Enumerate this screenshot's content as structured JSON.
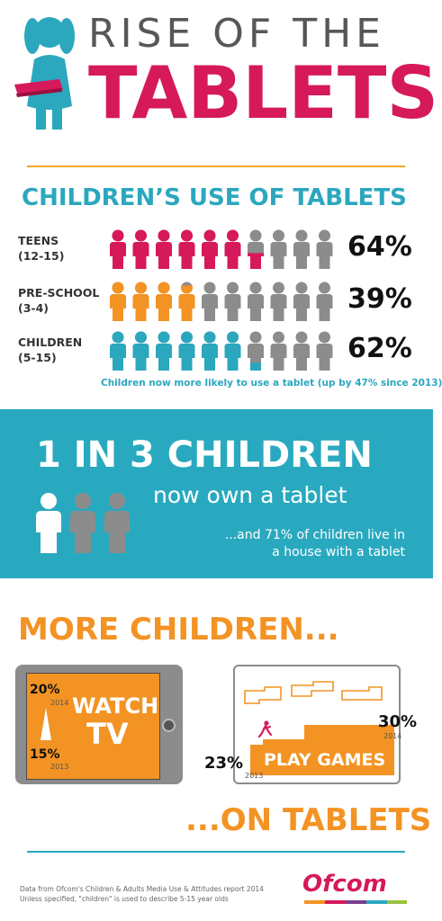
{
  "header": {
    "title_top": "RISE OF THE",
    "title_main": "TABLETS"
  },
  "usage": {
    "heading": "CHILDREN’S USE OF TABLETS",
    "rows": [
      {
        "label_line1": "TEENS",
        "label_line2": "(12-15)",
        "percent_text": "64%",
        "fill": 0.64,
        "color": "#d6195b"
      },
      {
        "label_line1": "PRE-SCHOOL",
        "label_line2": "(3-4)",
        "percent_text": "39%",
        "fill": 0.39,
        "color": "#f39324"
      },
      {
        "label_line1": "CHILDREN",
        "label_line2": "(5-15)",
        "percent_text": "62%",
        "fill": 0.62,
        "color": "#2ba7be"
      }
    ],
    "note": "Children now more likely to use a tablet (up by 47% since 2013)"
  },
  "ownership": {
    "headline": "1 IN 3 CHILDREN",
    "subline": "now own a tablet",
    "extra_line1": "...and 71% of children live in",
    "extra_line2": "a house with a tablet",
    "figures": 3,
    "highlighted": 1
  },
  "more": {
    "heading": "MORE CHILDREN...",
    "footer_heading": "...ON TABLETS",
    "watch_tv": {
      "label_line1": "WATCH",
      "label_line2": "TV",
      "stat_2014": "20%",
      "year_2014": "2014",
      "stat_2013": "15%",
      "year_2013": "2013"
    },
    "play_games": {
      "label": "PLAY GAMES",
      "stat_2014": "30%",
      "year_2014": "2014",
      "stat_2013": "23%",
      "year_2013": "2013"
    }
  },
  "footer": {
    "source_line1": "Data from Ofcom's Children & Adults Media Use & Attitudes report 2014",
    "source_line2": "Unless specified, \"children\" is used to describe 5-15 year olds",
    "logo": "Ofcom"
  },
  "colors": {
    "pink": "#d6195b",
    "orange": "#f39324",
    "teal": "#2ba7be",
    "grey": "#8c8c8c"
  }
}
